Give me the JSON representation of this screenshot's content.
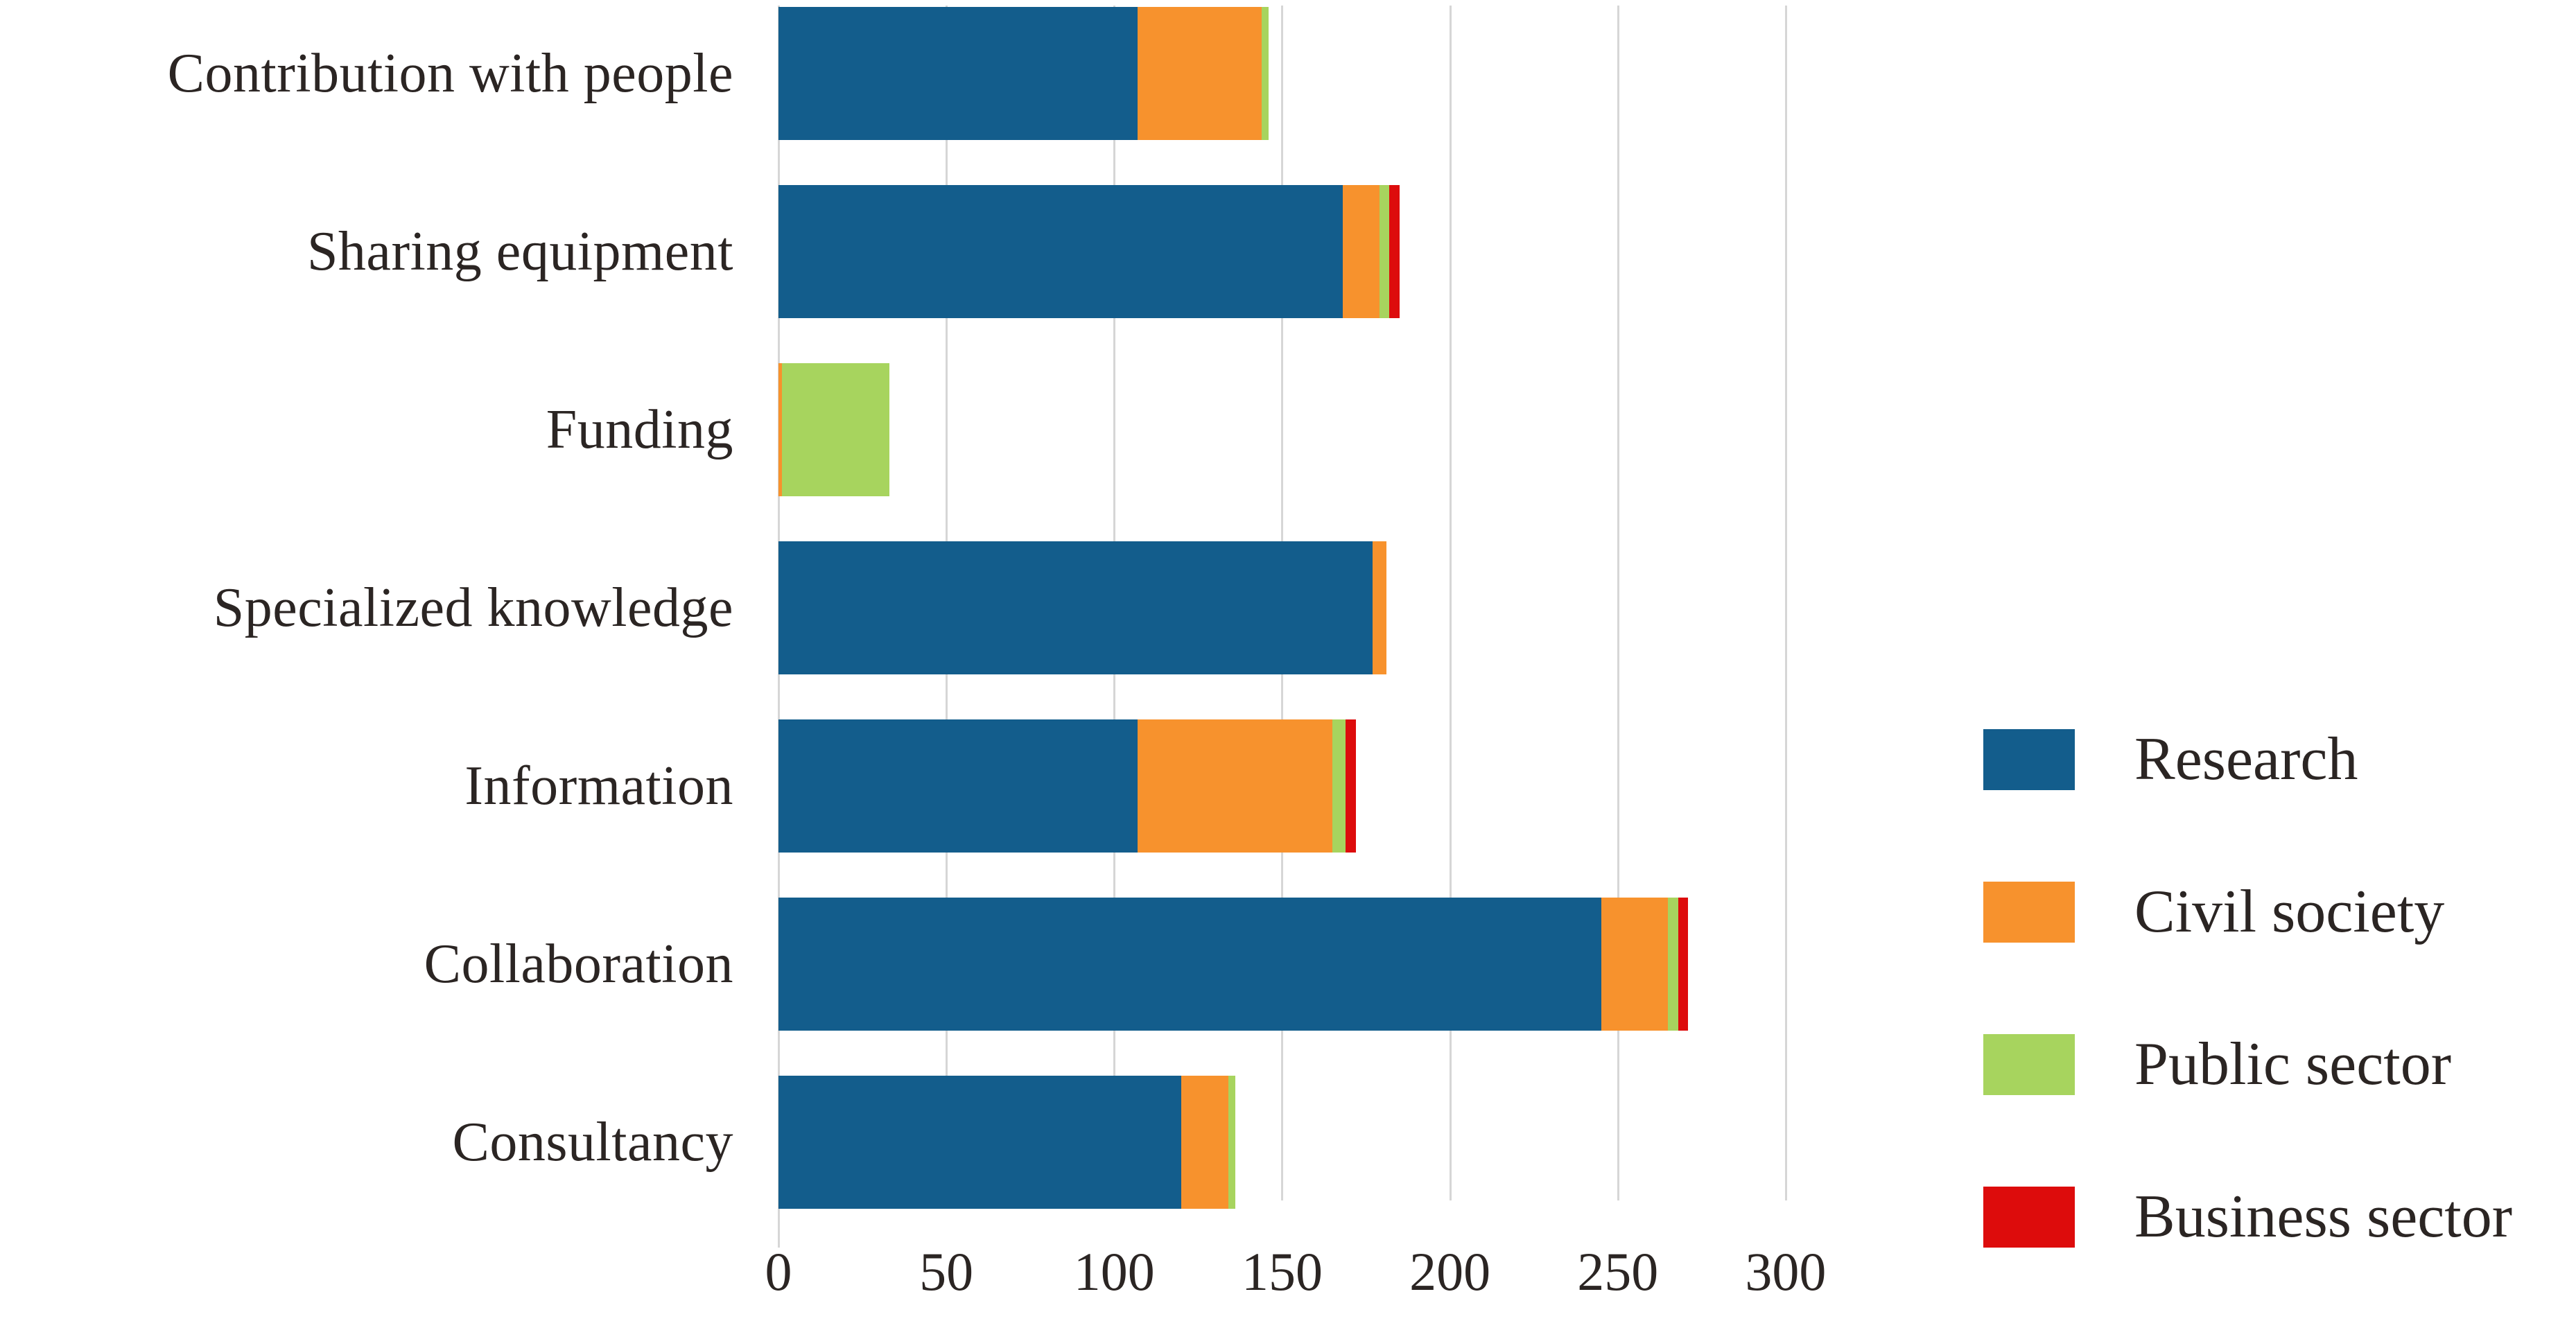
{
  "figure": {
    "background_color": "#ffffff",
    "text_color": "#2b2523",
    "gridline_color": "#d6d6d6"
  },
  "chart_data": {
    "type": "bar",
    "orientation": "horizontal",
    "stacked": true,
    "title": "",
    "xlabel": "",
    "ylabel": "",
    "grid": "vertical-only",
    "legend_position": "right",
    "categories": [
      "Contribution with people",
      "Sharing equipment",
      "Funding",
      "Specialized knowledge",
      "Information",
      "Collaboration",
      "Consultancy"
    ],
    "series": [
      {
        "name": "Research",
        "color": "#135d8c",
        "values": [
          107,
          168,
          0,
          177,
          107,
          245,
          120
        ]
      },
      {
        "name": "Civil society",
        "color": "#f7922d",
        "values": [
          37,
          11,
          1,
          4,
          58,
          20,
          14
        ]
      },
      {
        "name": "Public sector",
        "color": "#a7d45e",
        "values": [
          2,
          3,
          32,
          0,
          4,
          3,
          2
        ]
      },
      {
        "name": "Business sector",
        "color": "#dd0c0c",
        "values": [
          0,
          3,
          0,
          0,
          3,
          3,
          0
        ]
      }
    ],
    "totals": [
      146,
      185,
      33,
      181,
      172,
      271,
      136
    ],
    "x_ticks": [
      0,
      50,
      100,
      150,
      200,
      250,
      300
    ],
    "xlim": [
      0,
      327
    ]
  }
}
